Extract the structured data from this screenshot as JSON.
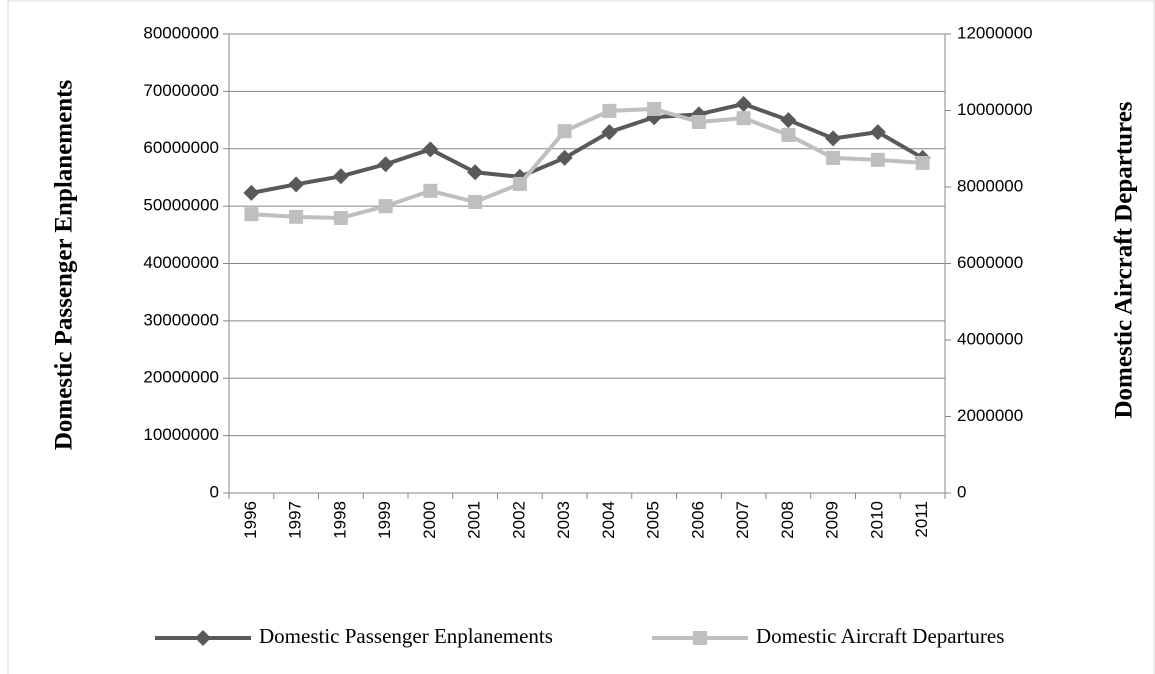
{
  "chart_data": {
    "type": "line",
    "categories": [
      "1996",
      "1997",
      "1998",
      "1999",
      "2000",
      "2001",
      "2002",
      "2003",
      "2004",
      "2005",
      "2006",
      "2007",
      "2008",
      "2009",
      "2010",
      "2011"
    ],
    "y_label": "Domestic Passenger Enplanements",
    "y2_label": "Domestic Aircraft Departures",
    "ylim": [
      0,
      80000000
    ],
    "yticks": [
      0,
      10000000,
      20000000,
      30000000,
      40000000,
      50000000,
      60000000,
      70000000,
      80000000
    ],
    "y2lim": [
      0,
      12000000
    ],
    "y2ticks": [
      0,
      2000000,
      4000000,
      6000000,
      8000000,
      10000000,
      12000000
    ],
    "grid": true,
    "legend": "bottom",
    "series": [
      {
        "name": "Domestic Passenger Enplanements",
        "color": "#595959",
        "marker": "diamond",
        "values": [
          52300000,
          53800000,
          55200000,
          57300000,
          59900000,
          55900000,
          55100000,
          58400000,
          62900000,
          65500000,
          66000000,
          67800000,
          65000000,
          61800000,
          62900000,
          58400000
        ]
      },
      {
        "name": "Domestic Aircraft Departures",
        "color": "#bfbfbf",
        "marker": "square",
        "axis": "y2",
        "values": [
          7290000,
          7220000,
          7190000,
          7500000,
          7900000,
          7610000,
          8080000,
          9460000,
          9990000,
          10040000,
          9700000,
          9800000,
          9360000,
          8760000,
          8710000,
          8630000
        ]
      }
    ]
  }
}
